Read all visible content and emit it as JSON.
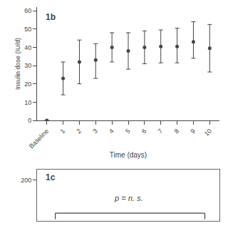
{
  "chart_data": [
    {
      "type": "scatter",
      "title": "1b",
      "xlabel": "Time (days)",
      "ylabel": "Insulin dose (IU/d)",
      "categories": [
        "Baseline",
        "1",
        "2",
        "3",
        "4",
        "5",
        "6",
        "7",
        "8",
        "9",
        "10"
      ],
      "values": [
        0,
        23,
        32,
        33,
        40,
        38,
        40,
        40.5,
        40.5,
        43,
        39.5
      ],
      "error_lower": [
        0,
        9,
        12,
        10,
        8,
        10,
        9,
        9,
        9,
        9,
        13
      ],
      "error_upper": [
        0,
        9,
        12,
        9,
        8,
        10,
        9,
        9,
        10,
        11,
        13
      ],
      "color": "#444444",
      "marker": "o",
      "ylim": [
        0,
        62
      ],
      "yticks": [
        0,
        10,
        20,
        30,
        40,
        50,
        60
      ],
      "grid": false
    },
    {
      "type": "bracket",
      "title": "1c",
      "annotations": [
        "p = n. s."
      ],
      "ylim": [
        0,
        250
      ],
      "yticks": [
        200
      ],
      "tick_labels": "y",
      "grid": false
    }
  ]
}
